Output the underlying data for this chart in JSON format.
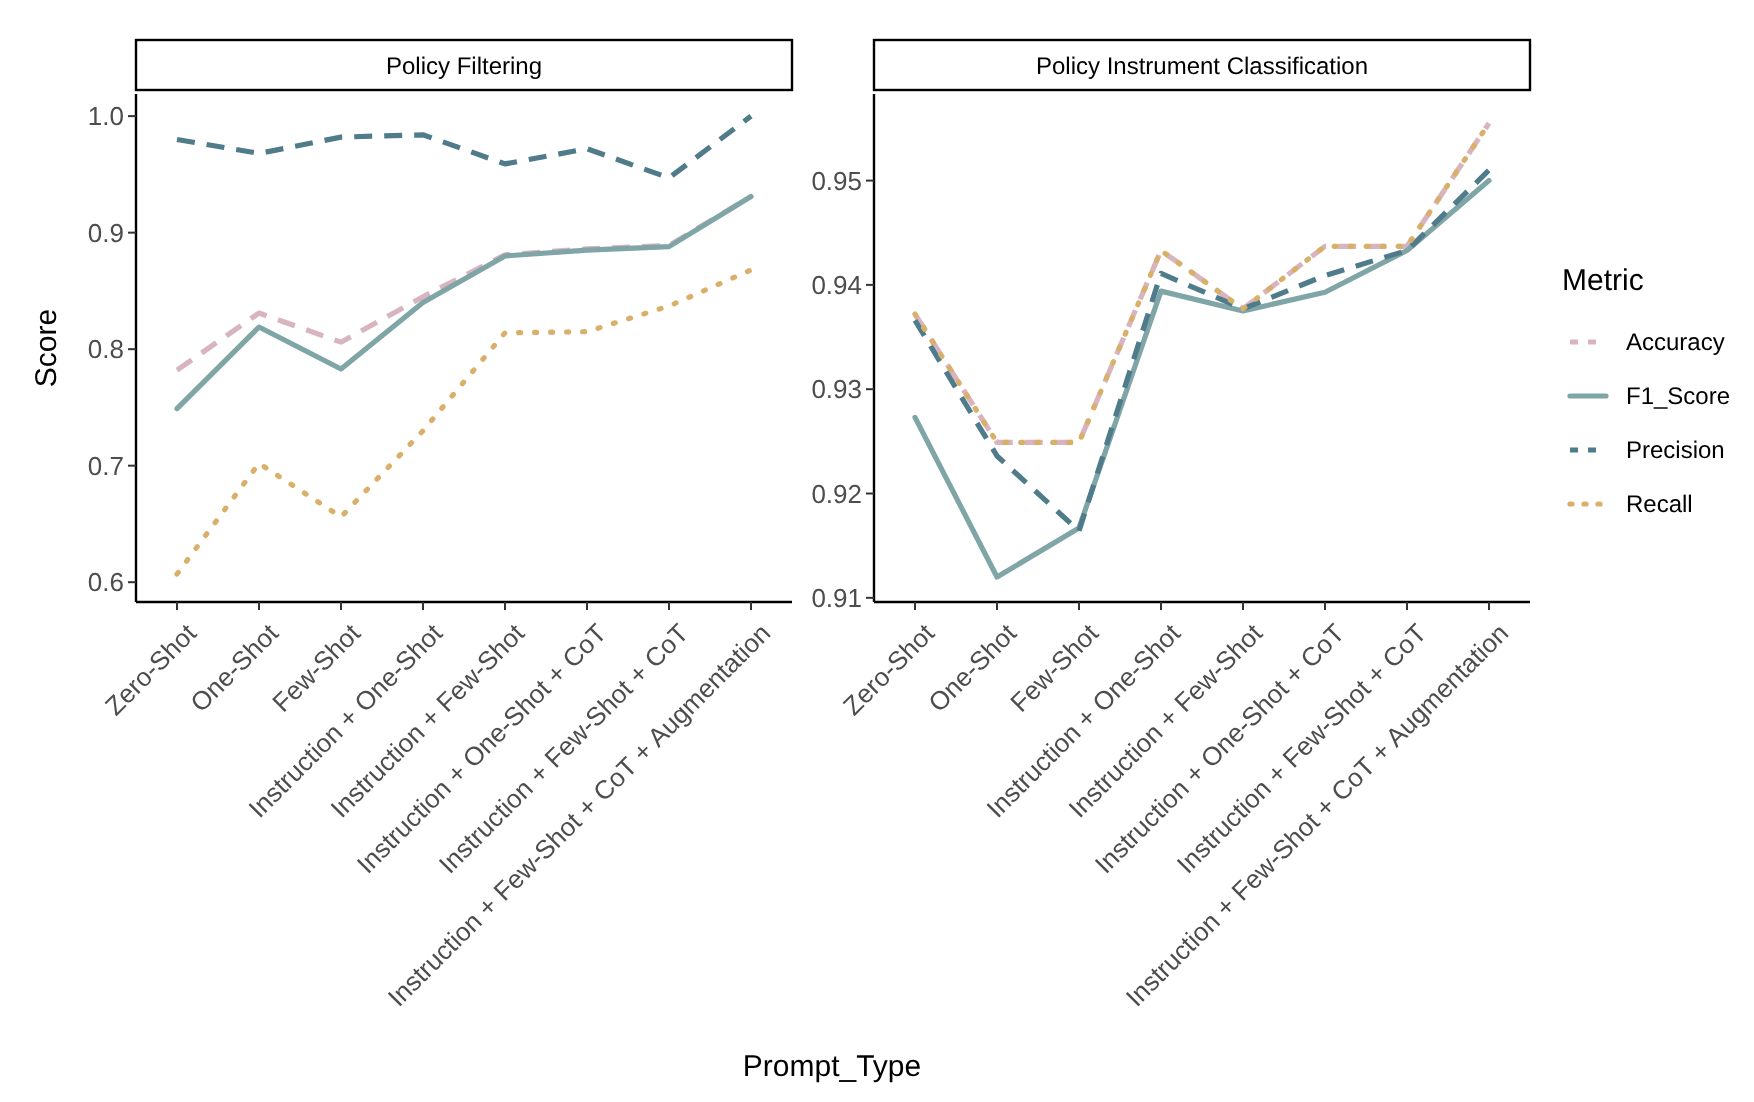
{
  "chart_data": [
    {
      "type": "line",
      "title": "Policy Filtering",
      "xlabel": "Prompt_Type",
      "ylabel": "Score",
      "categories": [
        "Zero-Shot",
        "One-Shot",
        "Few-Shot",
        "Instruction + One-Shot",
        "Instruction + Few-Shot",
        "Instruction + One-Shot + CoT",
        "Instruction + Few-Shot + CoT",
        "Instruction + Few-Shot + CoT + Augmentation"
      ],
      "ylim": [
        0.583,
        1.019
      ],
      "yticks": [
        {
          "value": 0.6,
          "label": "0.6"
        },
        {
          "value": 0.7,
          "label": "0.7"
        },
        {
          "value": 0.8,
          "label": "0.8"
        },
        {
          "value": 0.9,
          "label": "0.9"
        },
        {
          "value": 1.0,
          "label": "1.0"
        }
      ],
      "grid": false,
      "legend": false,
      "series": [
        {
          "color": "#d8b4be",
          "line_style": "dashed",
          "values": [
            0.782,
            0.831,
            0.806,
            0.845,
            0.881,
            0.886,
            0.889,
            0.931
          ]
        },
        {
          "color": "#7fa5a6",
          "line_style": "solid",
          "values": [
            0.749,
            0.819,
            0.783,
            0.84,
            0.88,
            0.885,
            0.888,
            0.931
          ]
        },
        {
          "color": "#4f7b8a",
          "line_style": "dashed",
          "values": [
            0.98,
            0.968,
            0.982,
            0.984,
            0.959,
            0.972,
            0.947,
            1.0
          ]
        },
        {
          "color": "#d9b06a",
          "line_style": "dotted",
          "values": [
            0.607,
            0.702,
            0.656,
            0.73,
            0.814,
            0.815,
            0.837,
            0.868
          ]
        }
      ]
    },
    {
      "type": "line",
      "title": "Policy Instrument Classification",
      "legend_title": "Metric",
      "categories": [
        "Zero-Shot",
        "One-Shot",
        "Few-Shot",
        "Instruction + One-Shot",
        "Instruction + Few-Shot",
        "Instruction + One-Shot + CoT",
        "Instruction + Few-Shot + CoT",
        "Instruction + Few-Shot + CoT + Augmentation"
      ],
      "ylim": [
        0.9096,
        0.9583
      ],
      "yticks": [
        0.91,
        0.92,
        0.93,
        0.94,
        0.95
      ],
      "grid": false,
      "legend": "right",
      "series": [
        {
          "name": "Accuracy",
          "color": "#d8b4be",
          "line_style": "dashed",
          "values": [
            0.9372,
            0.9249,
            0.9249,
            0.9433,
            0.9377,
            0.9437,
            0.9437,
            0.9555
          ]
        },
        {
          "name": "F1_Score",
          "color": "#7fa5a6",
          "line_style": "solid",
          "values": [
            0.9273,
            0.912,
            0.9167,
            0.9394,
            0.9375,
            0.9393,
            0.9433,
            0.95
          ]
        },
        {
          "name": "Precision",
          "color": "#4f7b8a",
          "line_style": "dashed",
          "values": [
            0.9366,
            0.9236,
            0.9164,
            0.9411,
            0.9377,
            0.9409,
            0.9433,
            0.951
          ]
        },
        {
          "name": "Recall",
          "color": "#d9b06a",
          "line_style": "dotted",
          "values": [
            0.9372,
            0.9249,
            0.9249,
            0.9433,
            0.9377,
            0.9437,
            0.9437,
            0.9555
          ]
        }
      ]
    }
  ]
}
